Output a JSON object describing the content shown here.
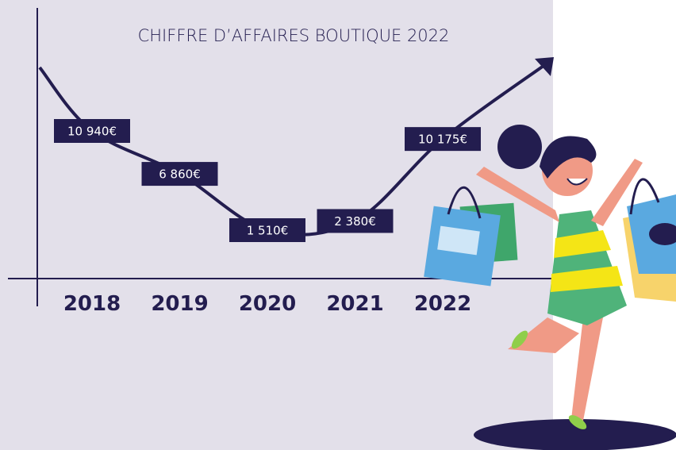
{
  "chart_data": {
    "type": "line",
    "title": "CHIFFRE D’AFFAIRES BOUTIQUE 2022",
    "categories": [
      "2018",
      "2019",
      "2020",
      "2021",
      "2022"
    ],
    "values": [
      10940,
      6860,
      1510,
      2380,
      10175
    ],
    "value_labels": [
      "10 940€",
      "6 860€",
      "1 510€",
      "2 380€",
      "10 175€"
    ],
    "color": "#231d4f"
  }
}
